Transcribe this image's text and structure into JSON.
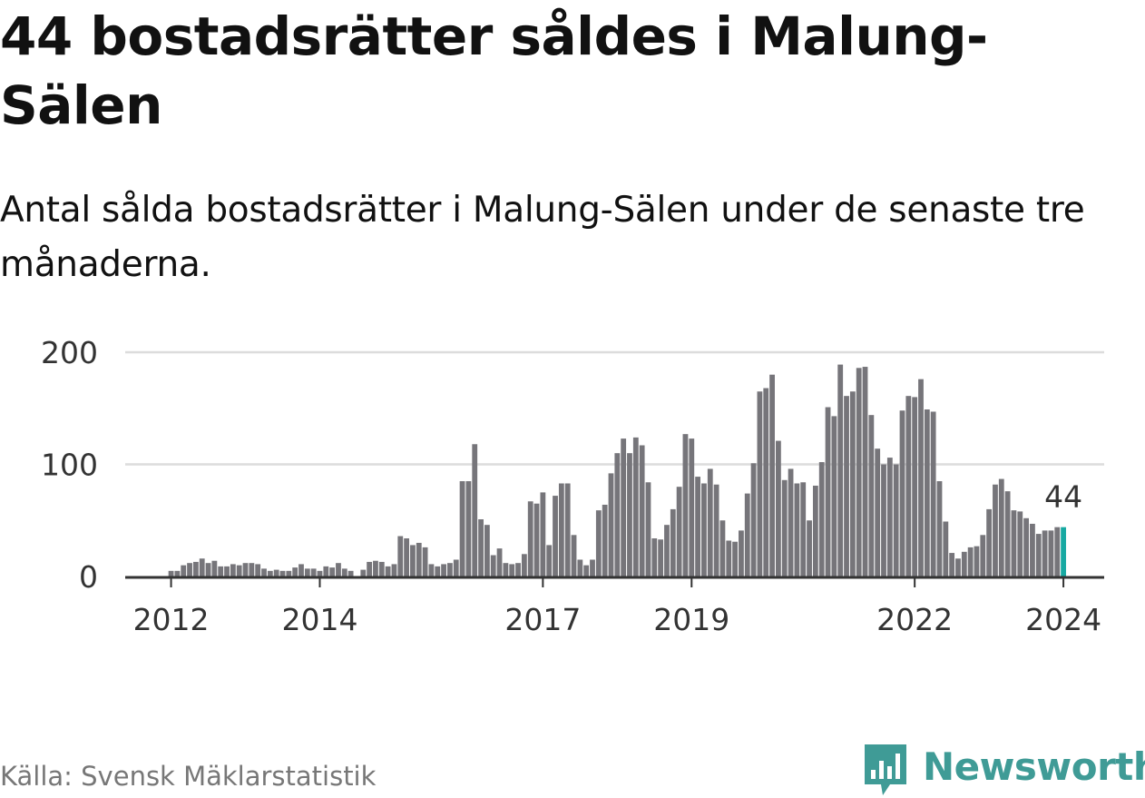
{
  "title": "44 bostadsrätter såldes i Malung-Sälen",
  "subtitle": "Antal sålda bostadsrätter i Malung-Sälen under de senaste tre månaderna.",
  "source": "Källa: Svensk Mäklarstatistik",
  "brand": "Newsworthy",
  "colors": {
    "bar": "#76757a",
    "highlight": "#17a9a2",
    "brand": "#3f9b96",
    "grid": "#dcdcdc",
    "axis": "#333333"
  },
  "chart_data": {
    "type": "bar",
    "title": "44 bostadsrätter såldes i Malung-Sälen",
    "xlabel": "",
    "ylabel": "",
    "ylim": [
      0,
      200
    ],
    "yticks": [
      0,
      100,
      200
    ],
    "grid": true,
    "highlight_label": "44",
    "x_tick_labels": [
      {
        "label": "2012",
        "index": 2
      },
      {
        "label": "2014",
        "index": 26
      },
      {
        "label": "2017",
        "index": 62
      },
      {
        "label": "2019",
        "index": 86
      },
      {
        "label": "2022",
        "index": 122
      },
      {
        "label": "2024",
        "index": 146
      }
    ],
    "series": [
      {
        "name": "Antal sålda bostadsrätter",
        "start": "2011-11",
        "frequency": "month",
        "values": [
          0,
          0,
          5,
          5,
          10,
          12,
          13,
          16,
          12,
          14,
          9,
          9,
          11,
          10,
          12,
          12,
          11,
          7,
          5,
          6,
          5,
          5,
          8,
          11,
          7,
          7,
          5,
          9,
          8,
          12,
          7,
          5,
          0,
          6,
          13,
          14,
          13,
          9,
          11,
          36,
          34,
          28,
          30,
          26,
          11,
          9,
          11,
          12,
          15,
          85,
          85,
          118,
          51,
          46,
          19,
          25,
          12,
          11,
          12,
          20,
          67,
          65,
          75,
          28,
          72,
          83,
          83,
          37,
          15,
          10,
          15,
          59,
          64,
          92,
          110,
          123,
          110,
          124,
          117,
          84,
          34,
          33,
          46,
          60,
          80,
          127,
          123,
          89,
          83,
          96,
          82,
          50,
          32,
          31,
          41,
          74,
          101,
          165,
          168,
          180,
          121,
          86,
          96,
          83,
          84,
          50,
          81,
          102,
          151,
          143,
          189,
          161,
          165,
          186,
          187,
          144,
          114,
          100,
          106,
          100,
          148,
          161,
          160,
          176,
          149,
          147,
          85,
          49,
          21,
          16,
          22,
          26,
          27,
          37,
          60,
          82,
          87,
          76,
          59,
          58,
          52,
          47,
          38,
          41,
          41,
          44,
          44
        ]
      }
    ]
  }
}
